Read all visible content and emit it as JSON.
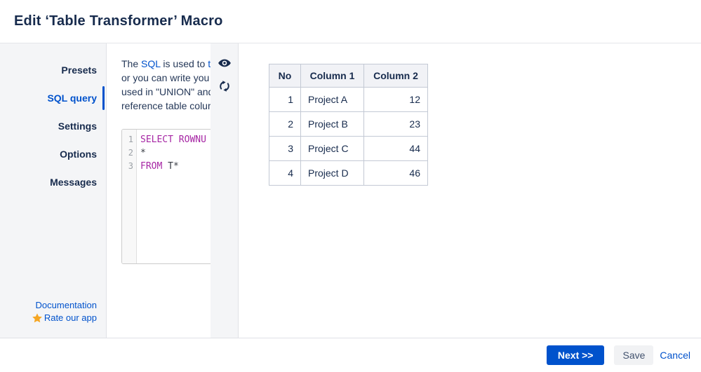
{
  "header": {
    "title": "Edit ‘Table Transformer’ Macro"
  },
  "sidebar": {
    "items": [
      {
        "label": "Presets",
        "selected": false
      },
      {
        "label": "SQL query",
        "selected": true
      },
      {
        "label": "Settings",
        "selected": false
      },
      {
        "label": "Options",
        "selected": false
      },
      {
        "label": "Messages",
        "selected": false
      }
    ],
    "documentation_label": "Documentation",
    "rate_label": "Rate our app"
  },
  "description": {
    "lines": [
      {
        "segments": [
          {
            "text": "The ",
            "type": "text"
          },
          {
            "text": "SQL",
            "type": "link"
          },
          {
            "text": " is used to ",
            "type": "text"
          },
          {
            "text": "tr",
            "type": "link"
          }
        ]
      },
      {
        "segments": [
          {
            "text": "or you can write you",
            "type": "text"
          }
        ]
      },
      {
        "segments": [
          {
            "text": "used in \"UNION\" and",
            "type": "text"
          }
        ]
      },
      {
        "segments": [
          {
            "text": "reference table colum",
            "type": "text"
          }
        ]
      }
    ]
  },
  "editor": {
    "lines": [
      {
        "number": "1",
        "segments": [
          {
            "text": "SELECT",
            "type": "keyword"
          },
          {
            "text": " ",
            "type": "plain"
          },
          {
            "text": "ROWNU",
            "type": "keyword"
          }
        ]
      },
      {
        "number": "2",
        "segments": [
          {
            "text": "*",
            "type": "plain"
          }
        ]
      },
      {
        "number": "3",
        "segments": [
          {
            "text": "FROM",
            "type": "keyword"
          },
          {
            "text": " T*",
            "type": "plain"
          }
        ]
      }
    ]
  },
  "tools": {
    "icons": [
      {
        "name": "preview-eye-icon"
      },
      {
        "name": "refresh-icon"
      }
    ]
  },
  "preview_table": {
    "headers": [
      "No",
      "Column 1",
      "Column 2"
    ],
    "header_align": [
      "center",
      "center",
      "center"
    ],
    "row_align": [
      "right",
      "left",
      "right"
    ],
    "rows": [
      [
        "1",
        "Project A",
        "12"
      ],
      [
        "2",
        "Project B",
        "23"
      ],
      [
        "3",
        "Project C",
        "44"
      ],
      [
        "4",
        "Project D",
        "46"
      ]
    ]
  },
  "footer": {
    "next_label": "Next >>",
    "save_label": "Save",
    "cancel_label": "Cancel"
  },
  "colors": {
    "accent_blue": "#0052CC",
    "navy_text": "#172B4D",
    "body_text": "#253858",
    "keyword_purple": "#A626A4",
    "star_orange": "#F5A623",
    "panel_gray": "#F4F5F7",
    "table_header_bg": "#F1F2F6",
    "table_border": "#C3C9D4"
  }
}
